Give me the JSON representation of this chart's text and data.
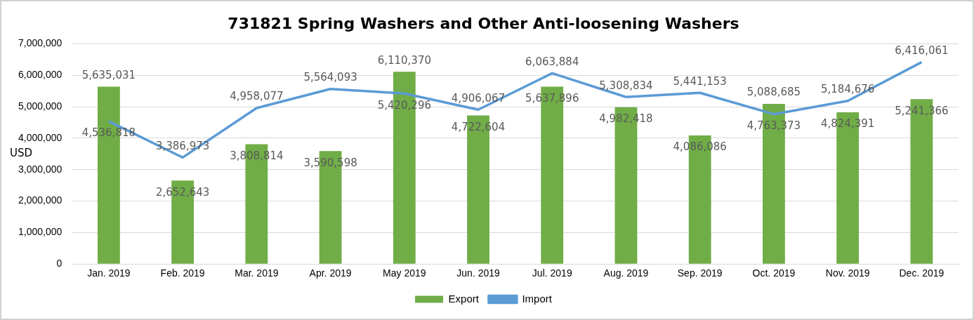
{
  "chart_data": {
    "type": "bar",
    "title": "731821 Spring Washers and Other Anti-loosening Washers",
    "ylabel": "USD",
    "categories": [
      "Jan. 2019",
      "Feb. 2019",
      "Mar. 2019",
      "Apr. 2019",
      "May 2019",
      "Jun. 2019",
      "Jul. 2019",
      "Aug. 2019",
      "Sep. 2019",
      "Oct. 2019",
      "Nov. 2019",
      "Dec. 2019"
    ],
    "series": [
      {
        "name": "Export",
        "color": "#70ad47",
        "values": [
          5635031,
          2652643,
          3808814,
          3590598,
          6110370,
          4722604,
          5637896,
          4982418,
          4086086,
          5088685,
          4824391,
          5241366
        ],
        "value_labels": [
          "5,635,031",
          "2,652,643",
          "3,808,814",
          "3,590,598",
          "6,110,370",
          "4,722,604",
          "5,637,896",
          "4,982,418",
          "4,086,086",
          "5,088,685",
          "4,824,391",
          "5,241,366"
        ]
      },
      {
        "name": "Import",
        "type": "line",
        "color": "#5b9bd5",
        "values": [
          4536818,
          3386973,
          4958077,
          5564093,
          5420296,
          4906067,
          6063884,
          5308834,
          5441153,
          4763373,
          5184676,
          6416061
        ],
        "value_labels": [
          "4,536,818",
          "3,386,973",
          "4,958,077",
          "5,564,093",
          "5,420,296",
          "4,906,067",
          "6,063,884",
          "5,308,834",
          "5,441,153",
          "4,763,373",
          "5,184,676",
          "6,416,061"
        ]
      }
    ],
    "ylim": [
      0,
      7000000
    ],
    "yticks": [
      {
        "value": 0,
        "label": "0"
      },
      {
        "value": 1000000,
        "label": "1,000,000"
      },
      {
        "value": 2000000,
        "label": "2,000,000"
      },
      {
        "value": 3000000,
        "label": "3,000,000"
      },
      {
        "value": 4000000,
        "label": "4,000,000"
      },
      {
        "value": 5000000,
        "label": "5,000,000"
      },
      {
        "value": 6000000,
        "label": "6,000,000"
      },
      {
        "value": 7000000,
        "label": "7,000,000"
      }
    ],
    "grid": "y",
    "legend": "bottom",
    "marker": "none",
    "line_style": "solid"
  }
}
